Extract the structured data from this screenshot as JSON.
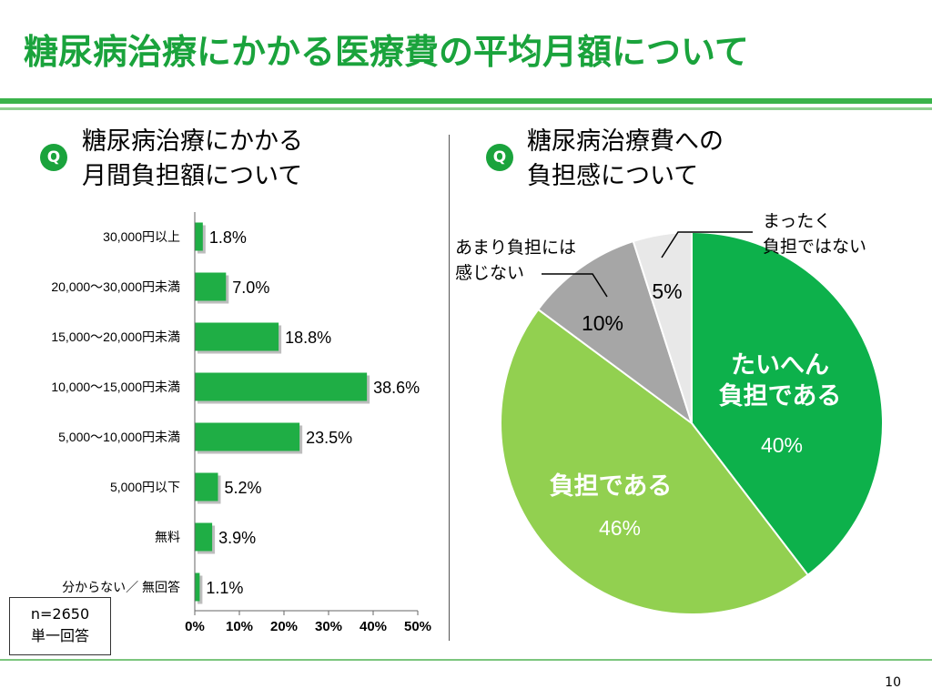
{
  "slide": {
    "title": "糖尿病治療にかかる医療費の平均月額について",
    "page_number": "10"
  },
  "left_panel": {
    "q_badge": "Q",
    "question": "糖尿病治療にかかる\n月間負担額について",
    "sample_line1": "n=2650",
    "sample_line2": "単一回答"
  },
  "right_panel": {
    "q_badge": "Q",
    "question": "糖尿病治療費への\n負担感について"
  },
  "colors": {
    "brand_green": "#1aa33c",
    "bar_green": "#1fae45",
    "pie_dark_green": "#0db14b",
    "pie_light_green": "#92d050",
    "pie_gray": "#a6a6a6",
    "pie_light_gray": "#e8e8e8"
  },
  "chart_data": [
    {
      "type": "bar",
      "orientation": "horizontal",
      "categories": [
        "30,000円以上",
        "20,000〜30,000円未満",
        "15,000〜20,000円未満",
        "10,000〜15,000円未満",
        "5,000〜10,000円未満",
        "5,000円以下",
        "無料",
        "分からない／ 無回答"
      ],
      "values": [
        1.8,
        7.0,
        18.8,
        38.6,
        23.5,
        5.2,
        3.9,
        1.1
      ],
      "value_labels": [
        "1.8%",
        "7.0%",
        "18.8%",
        "38.6%",
        "23.5%",
        "5.2%",
        "3.9%",
        "1.1%"
      ],
      "xlim": [
        0,
        50
      ],
      "xticks": [
        "0%",
        "10%",
        "20%",
        "30%",
        "40%",
        "50%"
      ],
      "grid": false
    },
    {
      "type": "pie",
      "slices": [
        {
          "label": "たいへん\n負担である",
          "value": 40,
          "value_label": "40%"
        },
        {
          "label": "負担である",
          "value": 46,
          "value_label": "46%"
        },
        {
          "label": "あまり負担には\n感じない",
          "value": 10,
          "value_label": "10%"
        },
        {
          "label": "まったく\n負担ではない",
          "value": 5,
          "value_label": "5%"
        }
      ]
    }
  ]
}
